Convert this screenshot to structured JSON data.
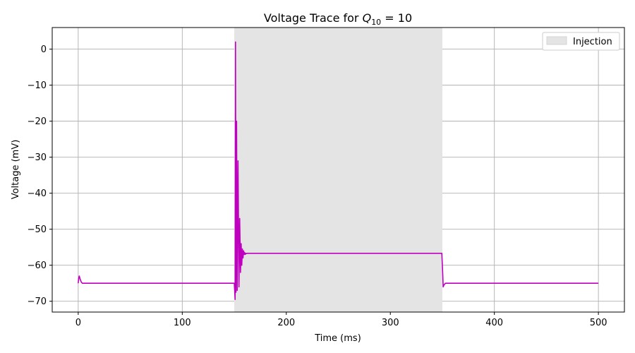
{
  "chart_data": {
    "type": "line",
    "title": {
      "prefix": "Voltage Trace for ",
      "math_symbol": "Q",
      "math_subscript": "10",
      "math_rest": " = 10"
    },
    "xlabel": "Time (ms)",
    "ylabel": "Voltage (mV)",
    "xlim": [
      -25,
      525
    ],
    "ylim": [
      -73,
      6
    ],
    "xticks": [
      0,
      100,
      200,
      300,
      400,
      500
    ],
    "yticks": [
      0,
      -10,
      -20,
      -30,
      -40,
      -50,
      -60,
      -70
    ],
    "grid": true,
    "legend": {
      "position": "top-right",
      "entries": [
        "Injection"
      ]
    },
    "injection_span": {
      "start": 150,
      "end": 350,
      "label": "Injection",
      "color": "#e4e4e4"
    },
    "series": [
      {
        "color": "#bf00bf",
        "x": [
          0,
          0.5,
          1,
          2,
          3,
          4,
          5,
          150,
          150.8,
          151.2,
          151.6,
          152.2,
          152.8,
          153.6,
          154.5,
          155.2,
          156,
          156.6,
          157.2,
          157.8,
          158.4,
          159,
          159.5,
          160,
          160.5,
          161,
          161.5,
          162,
          163,
          165,
          200,
          300,
          349.5,
          350.3,
          350.8,
          351.5,
          353,
          355,
          400,
          500
        ],
        "y": [
          -65,
          -63.5,
          -63,
          -64,
          -64.7,
          -65,
          -65,
          -65,
          -69.5,
          2,
          -67.5,
          -20,
          -67,
          -31,
          -66,
          -47,
          -62,
          -54,
          -60,
          -55.5,
          -58,
          -56,
          -57,
          -56.5,
          -57,
          -56.7,
          -56.8,
          -56.7,
          -56.7,
          -56.7,
          -56.7,
          -56.7,
          -56.7,
          -62,
          -66,
          -65.5,
          -65,
          -65,
          -65,
          -65
        ]
      }
    ]
  }
}
